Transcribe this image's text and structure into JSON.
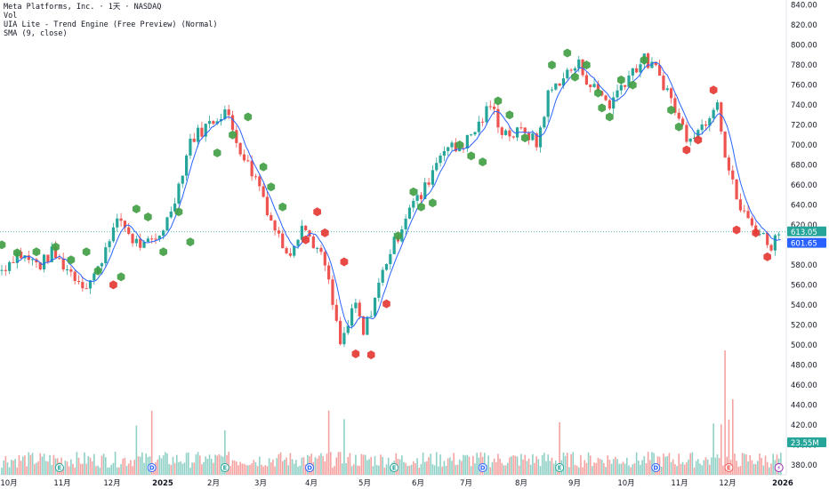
{
  "legend": {
    "line1": "Meta Platforms, Inc. · 1天 · NASDAQ",
    "line2": "Vol",
    "line3": "UIA Lite - Trend Engine (Free Preview) (Normal)",
    "line4": "SMA (9, close)"
  },
  "colors": {
    "up": "#26a69a",
    "down": "#ef5350",
    "sma": "#2962ff",
    "tag_green": "#43a047",
    "tag_red": "#e53935",
    "price_tag": "#26a69a",
    "sma_tag": "#2962ff",
    "vol_tag": "#26a69a"
  },
  "chart_data": {
    "type": "candlestick",
    "ylim": [
      370,
      845
    ],
    "y_ticks": [
      "840.00",
      "820.00",
      "800.00",
      "780.00",
      "760.00",
      "740.00",
      "720.00",
      "700.00",
      "680.00",
      "660.00",
      "640.00",
      "620.00",
      "600.00",
      "580.00",
      "560.00",
      "540.00",
      "520.00",
      "500.00",
      "480.00",
      "460.00",
      "440.00",
      "420.00",
      "400.00",
      "380.00"
    ],
    "x_ticks": [
      "10月",
      "11月",
      "12月",
      "2025",
      "2月",
      "3月",
      "4月",
      "5月",
      "6月",
      "7月",
      "8月",
      "9月",
      "10月",
      "11月",
      "12月",
      "2026"
    ],
    "x_ticks_bold": [
      "2025",
      "2026"
    ],
    "price_anchors": [
      [
        0,
        575
      ],
      [
        8,
        592
      ],
      [
        14,
        585
      ],
      [
        20,
        580
      ],
      [
        26,
        592
      ],
      [
        32,
        580
      ],
      [
        40,
        565
      ],
      [
        44,
        560
      ],
      [
        50,
        575
      ],
      [
        56,
        610
      ],
      [
        62,
        625
      ],
      [
        68,
        605
      ],
      [
        74,
        598
      ],
      [
        80,
        605
      ],
      [
        86,
        625
      ],
      [
        92,
        660
      ],
      [
        98,
        705
      ],
      [
        104,
        715
      ],
      [
        110,
        725
      ],
      [
        116,
        735
      ],
      [
        122,
        705
      ],
      [
        128,
        680
      ],
      [
        134,
        660
      ],
      [
        140,
        625
      ],
      [
        146,
        600
      ],
      [
        150,
        595
      ],
      [
        156,
        620
      ],
      [
        162,
        602
      ],
      [
        168,
        580
      ],
      [
        172,
        540
      ],
      [
        176,
        500
      ],
      [
        180,
        520
      ],
      [
        184,
        540
      ],
      [
        188,
        510
      ],
      [
        192,
        535
      ],
      [
        196,
        560
      ],
      [
        200,
        585
      ],
      [
        206,
        610
      ],
      [
        212,
        640
      ],
      [
        218,
        648
      ],
      [
        224,
        675
      ],
      [
        230,
        700
      ],
      [
        236,
        695
      ],
      [
        242,
        705
      ],
      [
        248,
        720
      ],
      [
        254,
        740
      ],
      [
        260,
        715
      ],
      [
        266,
        710
      ],
      [
        272,
        715
      ],
      [
        278,
        700
      ],
      [
        284,
        750
      ],
      [
        290,
        765
      ],
      [
        296,
        775
      ],
      [
        300,
        780
      ],
      [
        306,
        760
      ],
      [
        312,
        750
      ],
      [
        316,
        740
      ],
      [
        322,
        760
      ],
      [
        328,
        775
      ],
      [
        334,
        785
      ],
      [
        340,
        775
      ],
      [
        346,
        755
      ],
      [
        352,
        725
      ],
      [
        356,
        710
      ],
      [
        362,
        715
      ],
      [
        366,
        725
      ],
      [
        370,
        740
      ],
      [
        372,
        748
      ],
      [
        376,
        690
      ],
      [
        380,
        660
      ],
      [
        384,
        635
      ],
      [
        390,
        620
      ],
      [
        396,
        608
      ],
      [
        400,
        600
      ],
      [
        404,
        612
      ]
    ],
    "last_price": "613.05",
    "sma_label": "SMA (9, close)",
    "sma_value": "601.65",
    "volume_label": "Vol",
    "volume_value": "23.55M",
    "signal_tags": [
      [
        0,
        600,
        "g"
      ],
      [
        8,
        592,
        "g"
      ],
      [
        18,
        593,
        "g"
      ],
      [
        28,
        598,
        "g"
      ],
      [
        36,
        585,
        "g"
      ],
      [
        44,
        593,
        "g"
      ],
      [
        50,
        574,
        "g"
      ],
      [
        58,
        560,
        "r"
      ],
      [
        62,
        568,
        "g"
      ],
      [
        70,
        636,
        "g"
      ],
      [
        76,
        628,
        "g"
      ],
      [
        84,
        593,
        "g"
      ],
      [
        92,
        633,
        "g"
      ],
      [
        98,
        603,
        "g"
      ],
      [
        112,
        692,
        "g"
      ],
      [
        120,
        710,
        "g"
      ],
      [
        128,
        728,
        "g"
      ],
      [
        136,
        678,
        "g"
      ],
      [
        140,
        658,
        "g"
      ],
      [
        146,
        638,
        "g"
      ],
      [
        158,
        605,
        "r"
      ],
      [
        164,
        633,
        "r"
      ],
      [
        168,
        612,
        "r"
      ],
      [
        178,
        583,
        "r"
      ],
      [
        184,
        491,
        "r"
      ],
      [
        192,
        490,
        "r"
      ],
      [
        200,
        541,
        "r"
      ],
      [
        206,
        609,
        "g"
      ],
      [
        214,
        653,
        "g"
      ],
      [
        218,
        638,
        "g"
      ],
      [
        224,
        642,
        "g"
      ],
      [
        238,
        700,
        "g"
      ],
      [
        244,
        689,
        "g"
      ],
      [
        250,
        683,
        "g"
      ],
      [
        258,
        744,
        "g"
      ],
      [
        264,
        730,
        "g"
      ],
      [
        272,
        707,
        "g"
      ],
      [
        286,
        780,
        "g"
      ],
      [
        294,
        792,
        "g"
      ],
      [
        298,
        768,
        "g"
      ],
      [
        304,
        780,
        "g"
      ],
      [
        310,
        752,
        "g"
      ],
      [
        312,
        737,
        "g"
      ],
      [
        316,
        728,
        "g"
      ],
      [
        322,
        765,
        "g"
      ],
      [
        328,
        760,
        "g"
      ],
      [
        334,
        785,
        "g"
      ],
      [
        348,
        735,
        "g"
      ],
      [
        352,
        718,
        "g"
      ],
      [
        356,
        695,
        "r"
      ],
      [
        362,
        705,
        "r"
      ],
      [
        370,
        755,
        "r"
      ],
      [
        382,
        615,
        "r"
      ],
      [
        392,
        612,
        "r"
      ],
      [
        398,
        588,
        "r"
      ]
    ],
    "event_markers": [
      [
        30,
        "E",
        "#26a69a"
      ],
      [
        78,
        "D",
        "#2962ff"
      ],
      [
        116,
        "E",
        "#26a69a"
      ],
      [
        160,
        "D",
        "#2962ff"
      ],
      [
        204,
        "E",
        "#26a69a"
      ],
      [
        250,
        "D",
        "#2962ff"
      ],
      [
        290,
        "E",
        "#26a69a"
      ],
      [
        340,
        "D",
        "#2962ff"
      ],
      [
        378,
        "E",
        "#ef5350"
      ],
      [
        404,
        "⚡",
        "#9c27b0"
      ]
    ],
    "total_bars": 406
  }
}
